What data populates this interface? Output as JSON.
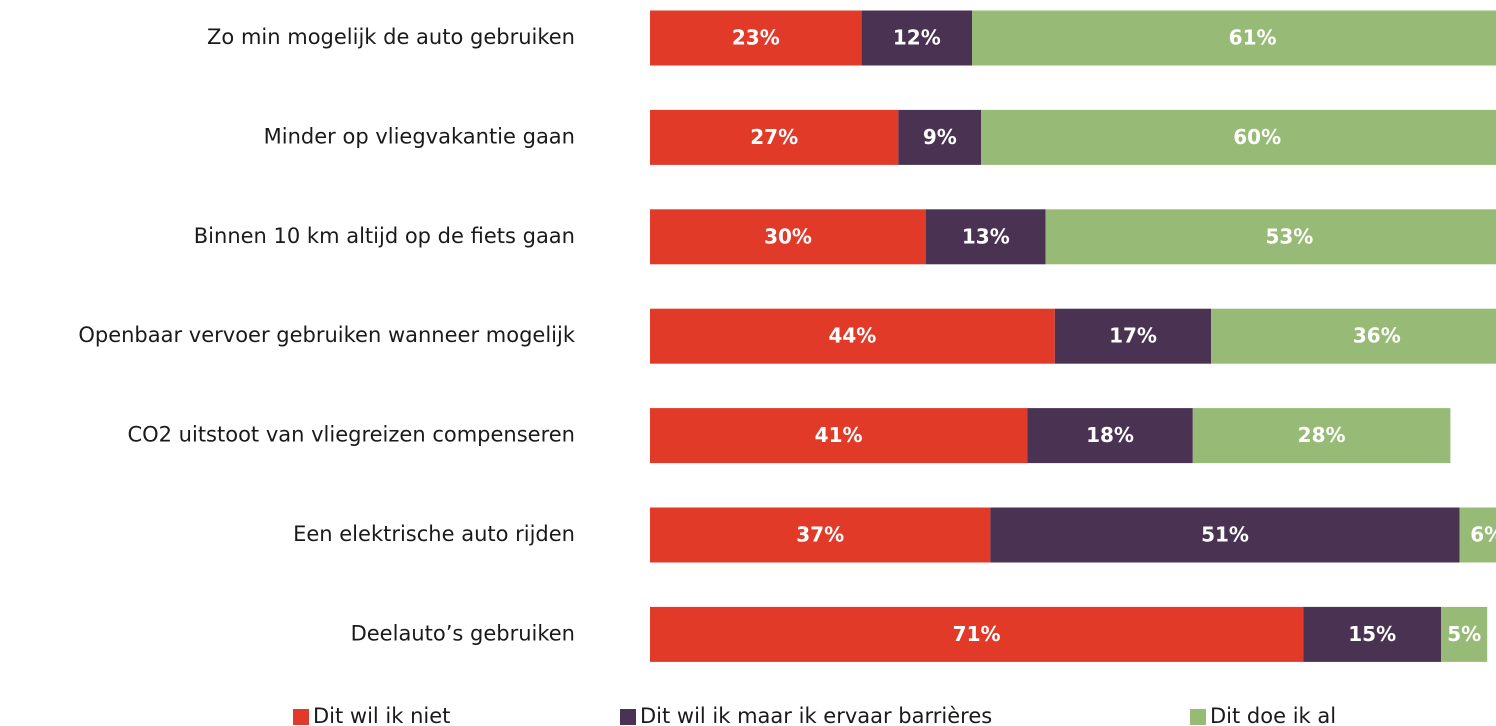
{
  "chart_data": {
    "type": "stacked-bar-horizontal",
    "categories": [
      "Zo min mogelijk de auto gebruiken",
      "Minder op vliegvakantie gaan",
      "Binnen 10 km altijd op de fiets gaan",
      "Openbaar vervoer gebruiken wanneer mogelijk",
      "CO2 uitstoot van vliegreizen compenseren",
      "Een elektrische auto rijden",
      "Deelauto’s gebruiken"
    ],
    "series": [
      {
        "name": "Dit wil ik niet",
        "color": "#e23a28",
        "values": [
          23,
          27,
          30,
          44,
          41,
          37,
          71
        ],
        "value_labels": [
          "23%",
          "27%",
          "30%",
          "44%",
          "41%",
          "37%",
          "71%"
        ]
      },
      {
        "name": "Dit wil ik maar ik ervaar barrières",
        "color": "#4a3352",
        "values": [
          12,
          9,
          13,
          17,
          18,
          51,
          15
        ],
        "value_labels": [
          "12%",
          "9%",
          "13%",
          "17%",
          "18%",
          "51%",
          "15%"
        ]
      },
      {
        "name": "Dit doe ik al",
        "color": "#97bb76",
        "values": [
          61,
          60,
          53,
          36,
          28,
          6,
          5
        ],
        "value_labels": [
          "61%",
          "60%",
          "53%",
          "36%",
          "28%",
          "6%",
          "5%"
        ]
      }
    ],
    "xlim": [
      0,
      100
    ]
  }
}
